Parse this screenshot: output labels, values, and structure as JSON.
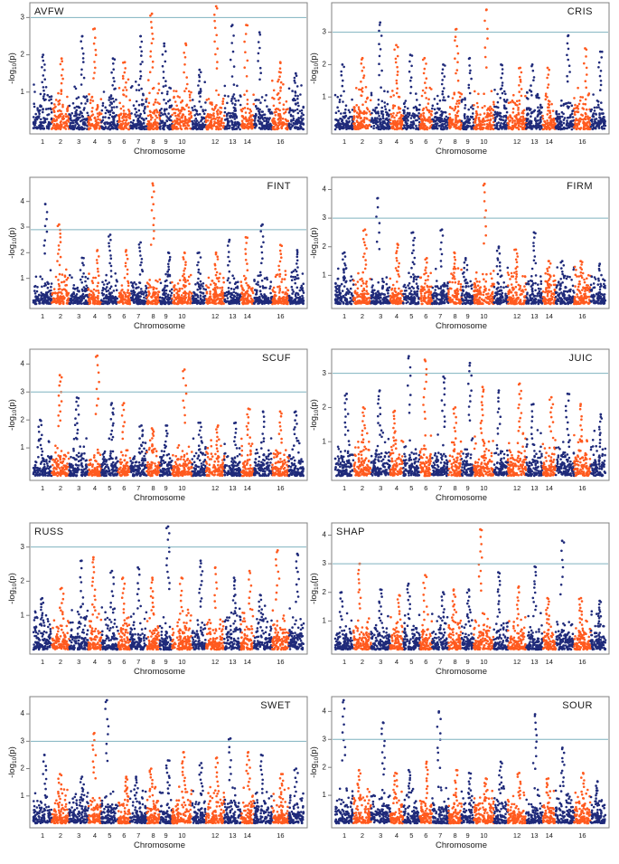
{
  "figure": {
    "xlabel": "Chromosome",
    "ylabel": "-log10(p)",
    "colors": {
      "odd": "#1f2a7a",
      "even": "#ff5a1f",
      "threshold": "#7fb2bf",
      "frame": "#808080",
      "text": "#1a1a1a"
    }
  },
  "chart_data": [
    {
      "type": "scatter",
      "title": "AVFW",
      "title_pos": "top-left",
      "threshold": 3,
      "ylim": [
        0,
        3.3
      ],
      "yticks": [
        1,
        2,
        3
      ],
      "xtick_labels": [
        "1",
        "2",
        "3",
        "4",
        "5",
        "6",
        "7",
        "8",
        "9",
        "10",
        "12",
        "13",
        "14",
        "16"
      ],
      "xtick_chroms": [
        1,
        2,
        3,
        4,
        5,
        6,
        7,
        8,
        9,
        10,
        12,
        13,
        14,
        16
      ],
      "chrom_peaks": [
        2.0,
        1.9,
        2.5,
        2.7,
        1.9,
        1.8,
        2.5,
        3.1,
        2.3,
        2.3,
        1.6,
        3.3,
        2.8,
        2.8,
        2.6,
        1.8,
        1.5
      ]
    },
    {
      "type": "scatter",
      "title": "CRIS",
      "title_pos": "top-right",
      "threshold": 3,
      "ylim": [
        0,
        3.8
      ],
      "yticks": [
        1,
        2,
        3
      ],
      "xtick_labels": [
        "1",
        "2",
        "3",
        "4",
        "5",
        "6",
        "7",
        "8",
        "9",
        "10",
        "12",
        "13",
        "14",
        "16"
      ],
      "xtick_chroms": [
        1,
        2,
        3,
        4,
        5,
        6,
        7,
        8,
        9,
        10,
        12,
        13,
        14,
        16
      ],
      "chrom_peaks": [
        2.0,
        2.2,
        3.3,
        2.6,
        2.3,
        2.2,
        2.0,
        3.1,
        2.2,
        3.7,
        2.0,
        1.9,
        2.0,
        1.9,
        2.9,
        2.5,
        2.4
      ]
    },
    {
      "type": "scatter",
      "title": "FINT",
      "title_pos": "top-right",
      "threshold": 2.9,
      "ylim": [
        0,
        4.8
      ],
      "yticks": [
        1,
        2,
        3,
        4
      ],
      "xtick_labels": [
        "1",
        "2",
        "3",
        "4",
        "5",
        "6",
        "7",
        "8",
        "9",
        "10",
        "12",
        "13",
        "14",
        "16"
      ],
      "xtick_chroms": [
        1,
        2,
        3,
        4,
        5,
        6,
        7,
        8,
        9,
        10,
        12,
        13,
        14,
        16
      ],
      "chrom_peaks": [
        3.9,
        3.1,
        1.8,
        2.1,
        2.7,
        2.1,
        2.4,
        4.7,
        2.0,
        2.0,
        2.0,
        2.0,
        2.5,
        2.6,
        3.1,
        2.3,
        2.1
      ]
    },
    {
      "type": "scatter",
      "title": "FIRM",
      "title_pos": "top-right",
      "threshold": 3,
      "ylim": [
        0,
        4.3
      ],
      "yticks": [
        1,
        2,
        3,
        4
      ],
      "xtick_labels": [
        "1",
        "2",
        "3",
        "4",
        "5",
        "6",
        "7",
        "8",
        "9",
        "10",
        "12",
        "13",
        "14",
        "16"
      ],
      "xtick_chroms": [
        1,
        2,
        3,
        4,
        5,
        6,
        7,
        8,
        9,
        10,
        12,
        13,
        14,
        16
      ],
      "chrom_peaks": [
        1.8,
        2.6,
        3.7,
        2.1,
        2.5,
        1.6,
        2.6,
        1.8,
        1.6,
        4.2,
        2.0,
        1.9,
        2.5,
        1.5,
        1.5,
        1.5,
        1.4
      ]
    },
    {
      "type": "scatter",
      "title": "SCUF",
      "title_pos": "top-right",
      "threshold": 3,
      "ylim": [
        0,
        4.4
      ],
      "yticks": [
        1,
        2,
        3,
        4
      ],
      "xtick_labels": [
        "1",
        "2",
        "3",
        "4",
        "5",
        "6",
        "7",
        "8",
        "9",
        "10",
        "12",
        "13",
        "14",
        "16"
      ],
      "xtick_chroms": [
        1,
        2,
        3,
        4,
        5,
        6,
        7,
        8,
        9,
        10,
        12,
        13,
        14,
        16
      ],
      "chrom_peaks": [
        2.0,
        3.6,
        2.8,
        4.3,
        2.6,
        2.6,
        1.8,
        1.7,
        1.8,
        3.8,
        1.9,
        1.8,
        1.9,
        2.4,
        2.3,
        2.3,
        2.3
      ]
    },
    {
      "type": "scatter",
      "title": "JUIC",
      "title_pos": "top-right",
      "threshold": 3,
      "ylim": [
        0,
        3.6
      ],
      "yticks": [
        1,
        2,
        3
      ],
      "xtick_labels": [
        "1",
        "2",
        "3",
        "4",
        "5",
        "6",
        "7",
        "8",
        "9",
        "10",
        "12",
        "13",
        "14",
        "16"
      ],
      "xtick_chroms": [
        1,
        2,
        3,
        4,
        5,
        6,
        7,
        8,
        9,
        10,
        12,
        13,
        14,
        16
      ],
      "chrom_peaks": [
        2.4,
        2.0,
        2.5,
        1.9,
        3.5,
        3.4,
        2.9,
        2.0,
        3.3,
        2.6,
        2.5,
        2.7,
        2.1,
        2.3,
        2.4,
        2.1,
        1.8
      ]
    },
    {
      "type": "scatter",
      "title": "RUSS",
      "title_pos": "top-left",
      "threshold": 3,
      "ylim": [
        0,
        3.6
      ],
      "yticks": [
        1,
        2,
        3
      ],
      "xtick_labels": [
        "1",
        "2",
        "3",
        "4",
        "5",
        "6",
        "7",
        "8",
        "9",
        "10",
        "12",
        "13",
        "14",
        "16"
      ],
      "xtick_chroms": [
        1,
        2,
        3,
        4,
        5,
        6,
        7,
        8,
        9,
        10,
        12,
        13,
        14,
        16
      ],
      "chrom_peaks": [
        1.5,
        1.8,
        2.6,
        2.7,
        2.3,
        2.1,
        2.4,
        2.1,
        3.6,
        2.1,
        2.6,
        2.4,
        2.1,
        2.3,
        1.6,
        2.9,
        2.8
      ]
    },
    {
      "type": "scatter",
      "title": "SHAP",
      "title_pos": "top-left",
      "threshold": 3,
      "ylim": [
        0,
        4.3
      ],
      "yticks": [
        1,
        2,
        3,
        4
      ],
      "xtick_labels": [
        "1",
        "2",
        "3",
        "4",
        "5",
        "6",
        "7",
        "8",
        "9",
        "10",
        "12",
        "13",
        "14",
        "16"
      ],
      "xtick_chroms": [
        1,
        2,
        3,
        4,
        5,
        6,
        7,
        8,
        9,
        10,
        12,
        13,
        14,
        16
      ],
      "chrom_peaks": [
        2.0,
        3.0,
        2.1,
        1.9,
        2.3,
        2.6,
        2.0,
        2.1,
        2.1,
        4.2,
        2.7,
        2.2,
        2.9,
        1.8,
        3.8,
        1.8,
        1.7
      ]
    },
    {
      "type": "scatter",
      "title": "SWET",
      "title_pos": "top-right",
      "threshold": 3,
      "ylim": [
        0,
        4.5
      ],
      "yticks": [
        1,
        2,
        3,
        4
      ],
      "xtick_labels": [
        "1",
        "2",
        "3",
        "4",
        "5",
        "6",
        "7",
        "8",
        "9",
        "10",
        "12",
        "13",
        "14",
        "16"
      ],
      "xtick_chroms": [
        1,
        2,
        3,
        4,
        5,
        6,
        7,
        8,
        9,
        10,
        12,
        13,
        14,
        16
      ],
      "chrom_peaks": [
        2.5,
        1.8,
        1.7,
        3.3,
        4.5,
        1.7,
        1.7,
        2.0,
        2.3,
        2.6,
        2.2,
        2.4,
        3.1,
        2.6,
        2.5,
        1.8,
        2.0
      ]
    },
    {
      "type": "scatter",
      "title": "SOUR",
      "title_pos": "top-right",
      "threshold": 3,
      "ylim": [
        0,
        4.4
      ],
      "yticks": [
        1,
        2,
        3,
        4
      ],
      "xtick_labels": [
        "1",
        "2",
        "3",
        "4",
        "5",
        "6",
        "7",
        "8",
        "9",
        "10",
        "12",
        "13",
        "14",
        "16"
      ],
      "xtick_chroms": [
        1,
        2,
        3,
        4,
        5,
        6,
        7,
        8,
        9,
        10,
        12,
        13,
        14,
        16
      ],
      "chrom_peaks": [
        4.4,
        1.9,
        3.6,
        1.8,
        1.9,
        2.2,
        4.0,
        1.9,
        1.8,
        1.6,
        2.2,
        1.8,
        3.9,
        1.6,
        2.7,
        1.8,
        1.5
      ]
    }
  ]
}
